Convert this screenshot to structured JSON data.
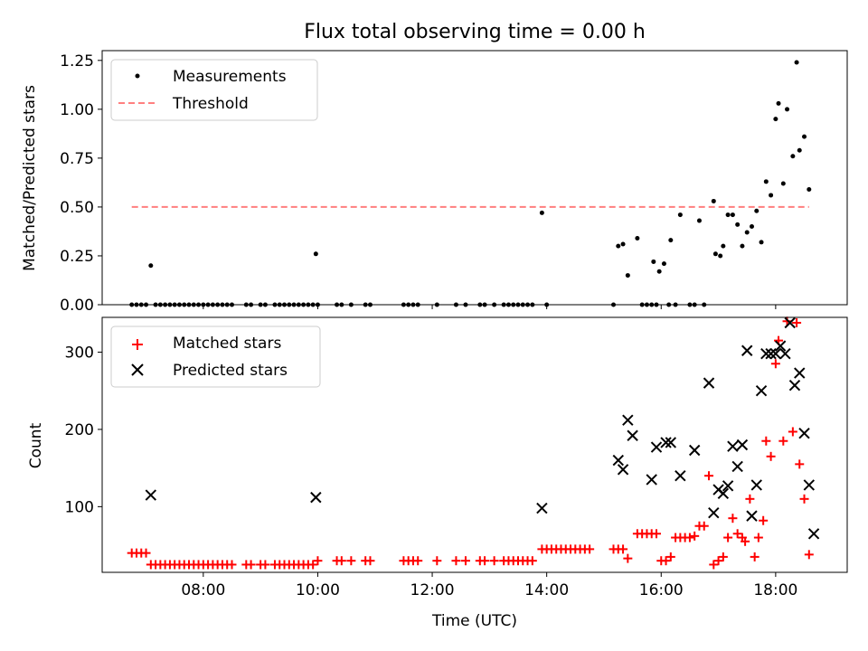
{
  "title": "Flux total observing time = 0.00 h",
  "chart_data": [
    {
      "type": "scatter",
      "panel": "top",
      "ylabel": "Matched/Predicted stars",
      "ylim": [
        0,
        1.3
      ],
      "yticks": [
        "0.00",
        "0.25",
        "0.50",
        "0.75",
        "1.00",
        "1.25"
      ],
      "xlim": [
        "06:14",
        "19:15"
      ],
      "grid": false,
      "legend_placement": "top-left",
      "series": [
        {
          "name": "Measurements",
          "marker": "dot",
          "color": "#000000",
          "points": [
            [
              "06:45",
              0
            ],
            [
              "06:50",
              0
            ],
            [
              "06:55",
              0
            ],
            [
              "07:00",
              0
            ],
            [
              "07:05",
              0.2
            ],
            [
              "07:10",
              0
            ],
            [
              "07:15",
              0
            ],
            [
              "07:20",
              0
            ],
            [
              "07:25",
              0
            ],
            [
              "07:30",
              0
            ],
            [
              "07:35",
              0
            ],
            [
              "07:40",
              0
            ],
            [
              "07:45",
              0
            ],
            [
              "07:50",
              0
            ],
            [
              "07:55",
              0
            ],
            [
              "08:00",
              0
            ],
            [
              "08:05",
              0
            ],
            [
              "08:10",
              0
            ],
            [
              "08:15",
              0
            ],
            [
              "08:20",
              0
            ],
            [
              "08:25",
              0
            ],
            [
              "08:30",
              0
            ],
            [
              "08:45",
              0
            ],
            [
              "08:50",
              0
            ],
            [
              "09:00",
              0
            ],
            [
              "09:05",
              0
            ],
            [
              "09:15",
              0
            ],
            [
              "09:20",
              0
            ],
            [
              "09:25",
              0
            ],
            [
              "09:30",
              0
            ],
            [
              "09:35",
              0
            ],
            [
              "09:40",
              0
            ],
            [
              "09:45",
              0
            ],
            [
              "09:50",
              0
            ],
            [
              "09:55",
              0
            ],
            [
              "09:58",
              0.26
            ],
            [
              "10:00",
              0
            ],
            [
              "10:20",
              0
            ],
            [
              "10:25",
              0
            ],
            [
              "10:35",
              0
            ],
            [
              "10:50",
              0
            ],
            [
              "10:55",
              0
            ],
            [
              "11:30",
              0
            ],
            [
              "11:35",
              0
            ],
            [
              "11:40",
              0
            ],
            [
              "11:45",
              0
            ],
            [
              "12:05",
              0
            ],
            [
              "12:25",
              0
            ],
            [
              "12:35",
              0
            ],
            [
              "12:50",
              0
            ],
            [
              "12:55",
              0
            ],
            [
              "13:05",
              0
            ],
            [
              "13:15",
              0
            ],
            [
              "13:20",
              0
            ],
            [
              "13:25",
              0
            ],
            [
              "13:30",
              0
            ],
            [
              "13:35",
              0
            ],
            [
              "13:40",
              0
            ],
            [
              "13:45",
              0
            ],
            [
              "13:55",
              0.47
            ],
            [
              "14:00",
              0
            ],
            [
              "15:10",
              0
            ],
            [
              "15:15",
              0.3
            ],
            [
              "15:20",
              0.31
            ],
            [
              "15:25",
              0.15
            ],
            [
              "15:35",
              0.34
            ],
            [
              "15:40",
              0
            ],
            [
              "15:45",
              0
            ],
            [
              "15:50",
              0
            ],
            [
              "15:55",
              0
            ],
            [
              "15:52",
              0.22
            ],
            [
              "15:58",
              0.17
            ],
            [
              "16:03",
              0.21
            ],
            [
              "16:08",
              0
            ],
            [
              "16:10",
              0.33
            ],
            [
              "16:15",
              0
            ],
            [
              "16:20",
              0.46
            ],
            [
              "16:30",
              0
            ],
            [
              "16:35",
              0
            ],
            [
              "16:40",
              0.43
            ],
            [
              "16:45",
              0
            ],
            [
              "16:55",
              0.53
            ],
            [
              "16:57",
              0.26
            ],
            [
              "17:02",
              0.25
            ],
            [
              "17:05",
              0.3
            ],
            [
              "17:10",
              0.46
            ],
            [
              "17:15",
              0.46
            ],
            [
              "17:20",
              0.41
            ],
            [
              "17:25",
              0.3
            ],
            [
              "17:30",
              0.37
            ],
            [
              "17:35",
              0.4
            ],
            [
              "17:40",
              0.48
            ],
            [
              "17:45",
              0.32
            ],
            [
              "17:50",
              0.63
            ],
            [
              "17:55",
              0.56
            ],
            [
              "18:00",
              0.95
            ],
            [
              "18:03",
              1.03
            ],
            [
              "18:08",
              0.62
            ],
            [
              "18:12",
              1.0
            ],
            [
              "18:18",
              0.76
            ],
            [
              "18:22",
              1.24
            ],
            [
              "18:25",
              0.79
            ],
            [
              "18:30",
              0.86
            ],
            [
              "18:35",
              0.59
            ]
          ]
        },
        {
          "name": "Threshold",
          "style": "dashed",
          "color": "#ff7f7f",
          "points": [
            [
              "06:45",
              0.5
            ],
            [
              "18:35",
              0.5
            ]
          ]
        }
      ]
    },
    {
      "type": "scatter",
      "panel": "bottom",
      "ylabel": "Count",
      "xlabel": "Time (UTC)",
      "ylim": [
        15,
        345
      ],
      "yticks": [
        "100",
        "200",
        "300"
      ],
      "xlim": [
        "06:14",
        "19:15"
      ],
      "xticks": [
        "08:00",
        "10:00",
        "12:00",
        "14:00",
        "16:00",
        "18:00"
      ],
      "grid": false,
      "legend_placement": "top-left",
      "series": [
        {
          "name": "Matched stars",
          "marker": "plus",
          "color": "#ff0000",
          "points": [
            [
              "06:45",
              40
            ],
            [
              "06:50",
              40
            ],
            [
              "06:55",
              40
            ],
            [
              "07:00",
              40
            ],
            [
              "07:05",
              25
            ],
            [
              "07:10",
              25
            ],
            [
              "07:15",
              25
            ],
            [
              "07:20",
              25
            ],
            [
              "07:25",
              25
            ],
            [
              "07:30",
              25
            ],
            [
              "07:35",
              25
            ],
            [
              "07:40",
              25
            ],
            [
              "07:45",
              25
            ],
            [
              "07:50",
              25
            ],
            [
              "07:55",
              25
            ],
            [
              "08:00",
              25
            ],
            [
              "08:05",
              25
            ],
            [
              "08:10",
              25
            ],
            [
              "08:15",
              25
            ],
            [
              "08:20",
              25
            ],
            [
              "08:25",
              25
            ],
            [
              "08:30",
              25
            ],
            [
              "08:45",
              25
            ],
            [
              "08:50",
              25
            ],
            [
              "09:00",
              25
            ],
            [
              "09:05",
              25
            ],
            [
              "09:15",
              25
            ],
            [
              "09:20",
              25
            ],
            [
              "09:25",
              25
            ],
            [
              "09:30",
              25
            ],
            [
              "09:35",
              25
            ],
            [
              "09:40",
              25
            ],
            [
              "09:45",
              25
            ],
            [
              "09:50",
              25
            ],
            [
              "09:55",
              25
            ],
            [
              "10:00",
              30
            ],
            [
              "10:20",
              30
            ],
            [
              "10:25",
              30
            ],
            [
              "10:35",
              30
            ],
            [
              "10:50",
              30
            ],
            [
              "10:55",
              30
            ],
            [
              "11:30",
              30
            ],
            [
              "11:35",
              30
            ],
            [
              "11:40",
              30
            ],
            [
              "11:45",
              30
            ],
            [
              "12:05",
              30
            ],
            [
              "12:25",
              30
            ],
            [
              "12:35",
              30
            ],
            [
              "12:50",
              30
            ],
            [
              "12:55",
              30
            ],
            [
              "13:05",
              30
            ],
            [
              "13:15",
              30
            ],
            [
              "13:20",
              30
            ],
            [
              "13:25",
              30
            ],
            [
              "13:30",
              30
            ],
            [
              "13:35",
              30
            ],
            [
              "13:40",
              30
            ],
            [
              "13:45",
              30
            ],
            [
              "13:55",
              45
            ],
            [
              "14:00",
              45
            ],
            [
              "14:05",
              45
            ],
            [
              "14:10",
              45
            ],
            [
              "14:15",
              45
            ],
            [
              "14:20",
              45
            ],
            [
              "14:25",
              45
            ],
            [
              "14:30",
              45
            ],
            [
              "14:35",
              45
            ],
            [
              "14:40",
              45
            ],
            [
              "14:45",
              45
            ],
            [
              "15:10",
              45
            ],
            [
              "15:15",
              45
            ],
            [
              "15:20",
              45
            ],
            [
              "15:25",
              33
            ],
            [
              "15:35",
              65
            ],
            [
              "15:40",
              65
            ],
            [
              "15:45",
              65
            ],
            [
              "15:50",
              65
            ],
            [
              "15:55",
              65
            ],
            [
              "16:00",
              30
            ],
            [
              "16:05",
              30
            ],
            [
              "16:10",
              35
            ],
            [
              "16:15",
              60
            ],
            [
              "16:20",
              60
            ],
            [
              "16:25",
              60
            ],
            [
              "16:30",
              60
            ],
            [
              "16:35",
              62
            ],
            [
              "16:40",
              75
            ],
            [
              "16:45",
              75
            ],
            [
              "16:50",
              140
            ],
            [
              "16:55",
              25
            ],
            [
              "17:00",
              30
            ],
            [
              "17:05",
              35
            ],
            [
              "17:10",
              60
            ],
            [
              "17:15",
              85
            ],
            [
              "17:20",
              65
            ],
            [
              "17:25",
              60
            ],
            [
              "17:28",
              55
            ],
            [
              "17:33",
              110
            ],
            [
              "17:38",
              35
            ],
            [
              "17:42",
              60
            ],
            [
              "17:47",
              82
            ],
            [
              "17:50",
              185
            ],
            [
              "17:55",
              165
            ],
            [
              "18:00",
              285
            ],
            [
              "18:03",
              315
            ],
            [
              "18:08",
              185
            ],
            [
              "18:12",
              340
            ],
            [
              "18:18",
              197
            ],
            [
              "18:22",
              338
            ],
            [
              "18:25",
              155
            ],
            [
              "18:30",
              110
            ],
            [
              "18:35",
              38
            ]
          ]
        },
        {
          "name": "Predicted stars",
          "marker": "x",
          "color": "#000000",
          "points": [
            [
              "07:05",
              115
            ],
            [
              "09:58",
              112
            ],
            [
              "13:55",
              98
            ],
            [
              "15:15",
              160
            ],
            [
              "15:20",
              148
            ],
            [
              "15:25",
              212
            ],
            [
              "15:30",
              192
            ],
            [
              "15:50",
              135
            ],
            [
              "15:55",
              177
            ],
            [
              "16:05",
              183
            ],
            [
              "16:10",
              183
            ],
            [
              "16:20",
              140
            ],
            [
              "16:35",
              173
            ],
            [
              "16:50",
              260
            ],
            [
              "16:55",
              92
            ],
            [
              "17:00",
              122
            ],
            [
              "17:05",
              117
            ],
            [
              "17:10",
              127
            ],
            [
              "17:15",
              178
            ],
            [
              "17:20",
              152
            ],
            [
              "17:25",
              180
            ],
            [
              "17:30",
              302
            ],
            [
              "17:35",
              88
            ],
            [
              "17:40",
              128
            ],
            [
              "17:45",
              250
            ],
            [
              "17:50",
              298
            ],
            [
              "17:55",
              298
            ],
            [
              "18:00",
              298
            ],
            [
              "18:05",
              308
            ],
            [
              "18:10",
              298
            ],
            [
              "18:15",
              338
            ],
            [
              "18:20",
              257
            ],
            [
              "18:25",
              273
            ],
            [
              "18:30",
              195
            ],
            [
              "18:35",
              128
            ],
            [
              "18:40",
              65
            ]
          ]
        }
      ]
    }
  ]
}
